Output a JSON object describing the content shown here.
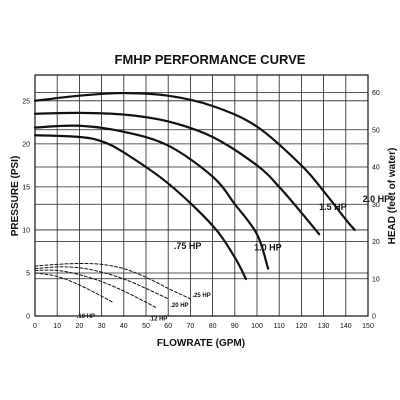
{
  "chart_data": {
    "type": "line",
    "title": "FMHP PERFORMANCE CURVE",
    "xlabel": "FLOWRATE (GPM)",
    "ylabel": "PRESSURE (PSI)",
    "y2label": "HEAD (feet of water)",
    "xlim": [
      0,
      150
    ],
    "ylim": [
      0,
      28
    ],
    "y2lim": [
      0,
      64.7
    ],
    "x_ticks": [
      0,
      10,
      20,
      30,
      40,
      50,
      60,
      70,
      80,
      90,
      100,
      110,
      120,
      130,
      140,
      150
    ],
    "y_ticks": [
      0,
      5,
      10,
      15,
      20,
      25
    ],
    "y2_ticks": [
      0,
      10,
      20,
      30,
      40,
      50,
      60
    ],
    "grid": true,
    "series": [
      {
        "name": "2.0 HP",
        "style": "solid",
        "x": [
          0,
          20,
          40,
          60,
          80,
          100,
          120,
          130,
          140,
          144
        ],
        "y": [
          25.0,
          25.6,
          25.9,
          25.6,
          24.4,
          22.0,
          17.5,
          14.5,
          11.2,
          10.0
        ]
      },
      {
        "name": "1.5 HP",
        "style": "solid",
        "x": [
          0,
          20,
          40,
          60,
          80,
          100,
          110,
          120,
          128
        ],
        "y": [
          23.5,
          23.6,
          23.4,
          22.6,
          20.8,
          17.5,
          15.0,
          12.0,
          9.5
        ]
      },
      {
        "name": "1.0 HP",
        "style": "solid",
        "x": [
          0,
          20,
          40,
          60,
          80,
          90,
          100,
          105
        ],
        "y": [
          21.9,
          22.1,
          21.4,
          19.8,
          16.2,
          13.0,
          9.5,
          5.5
        ]
      },
      {
        "name": ".75 HP",
        "style": "solid",
        "x": [
          0,
          20,
          30,
          40,
          60,
          80,
          90,
          95
        ],
        "y": [
          21.0,
          20.8,
          20.3,
          19.0,
          15.4,
          10.5,
          6.8,
          4.3
        ]
      },
      {
        "name": ".25 HP",
        "style": "dashed",
        "x": [
          0,
          10,
          20,
          30,
          40,
          50,
          60,
          70
        ],
        "y": [
          5.8,
          6.0,
          6.1,
          6.0,
          5.5,
          4.5,
          3.2,
          2.0
        ]
      },
      {
        "name": ".20 HP",
        "style": "dashed",
        "x": [
          0,
          10,
          20,
          30,
          40,
          50,
          60
        ],
        "y": [
          5.5,
          5.7,
          5.6,
          5.1,
          4.3,
          3.2,
          2.0
        ]
      },
      {
        "name": ".12 HP",
        "style": "dashed",
        "x": [
          0,
          10,
          20,
          30,
          40,
          50,
          55
        ],
        "y": [
          5.3,
          5.3,
          4.8,
          4.0,
          2.9,
          1.6,
          0.9
        ]
      },
      {
        "name": ".10 HP",
        "style": "dashed",
        "x": [
          0,
          10,
          20,
          30,
          35
        ],
        "y": [
          5.0,
          4.6,
          3.6,
          2.3,
          1.6
        ]
      }
    ],
    "colors": {
      "line": "#111111",
      "grid": "#222222",
      "background": "#ffffff"
    }
  }
}
